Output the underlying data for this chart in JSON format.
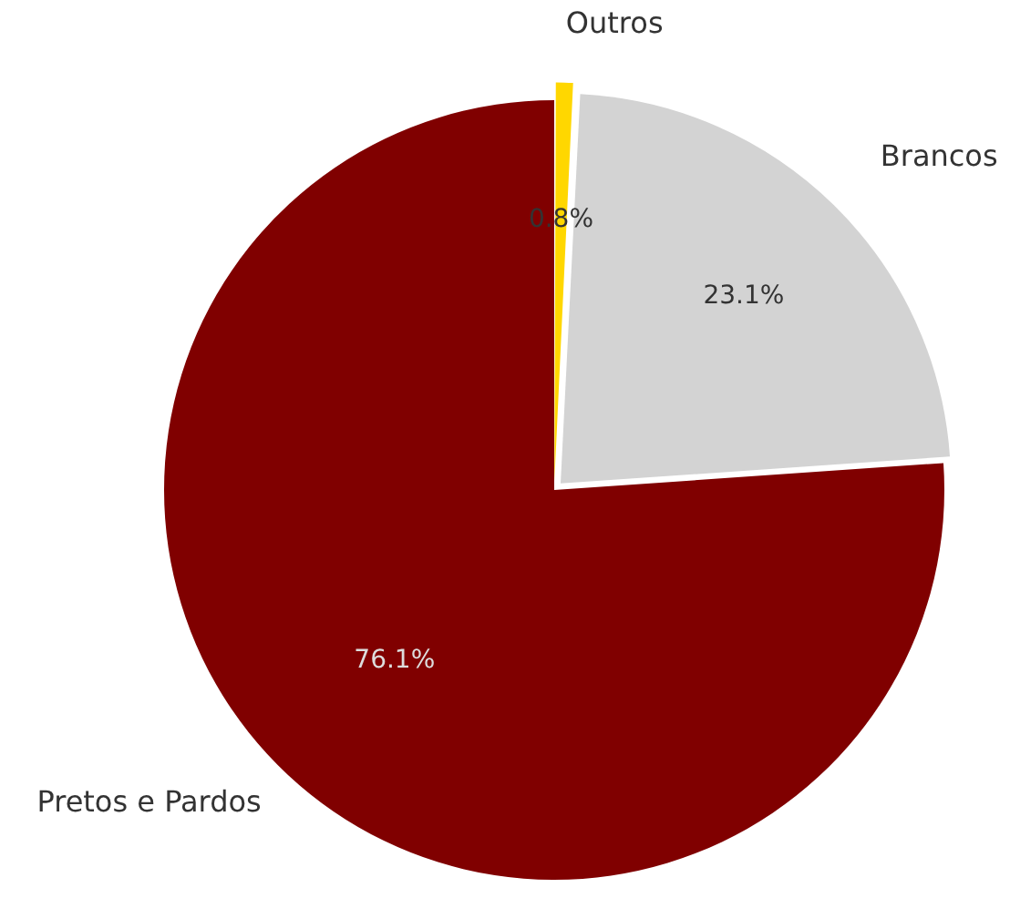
{
  "chart_data": {
    "type": "pie",
    "categories": [
      "Outros",
      "Brancos",
      "Pretos e Pardos"
    ],
    "values": [
      0.8,
      23.1,
      76.1
    ],
    "colors": [
      "#ffd700",
      "#d3d3d3",
      "#800000"
    ],
    "value_labels": [
      "0.8%",
      "23.1%",
      "76.1%"
    ],
    "legend": false
  }
}
